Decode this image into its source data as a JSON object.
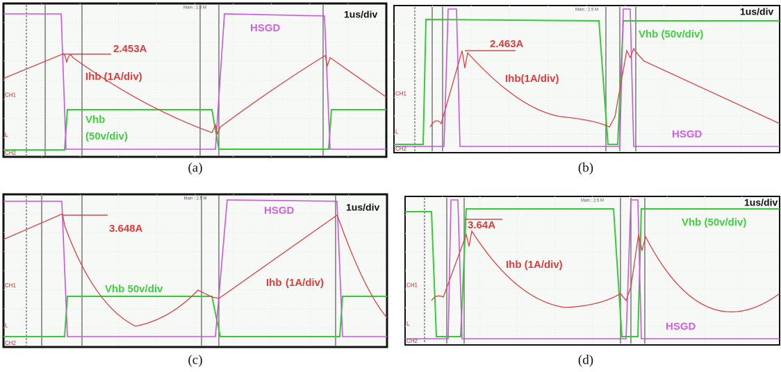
{
  "panels": [
    {
      "caption": "(a)",
      "header": "Main : 2.5 M",
      "timebase": "1us/div",
      "channel_markers": [
        "CH1",
        "L",
        "CH2"
      ],
      "annotations": [
        {
          "kind": "current",
          "text": "2.453A"
        },
        {
          "kind": "ihb",
          "text": "Ihb (1A/div)"
        },
        {
          "kind": "vhb",
          "text": "Vhb"
        },
        {
          "kind": "vhb",
          "text": "(50v/div)"
        },
        {
          "kind": "hsgd",
          "text": "HSGD"
        }
      ]
    },
    {
      "caption": "(b)",
      "header": "Main : 2.5 M",
      "timebase": "1us/div",
      "channel_markers": [
        "CH1",
        "L",
        "CH2"
      ],
      "annotations": [
        {
          "kind": "current",
          "text": "2.463A"
        },
        {
          "kind": "ihb",
          "text": "Ihb(1A/div)"
        },
        {
          "kind": "vhb",
          "text": "Vhb (50v/div)"
        },
        {
          "kind": "hsgd",
          "text": "HSGD"
        }
      ]
    },
    {
      "caption": "(c)",
      "header": "Main : 2.5 M",
      "timebase": "1us/div",
      "channel_markers": [
        "CH1",
        "L",
        "CH2"
      ],
      "annotations": [
        {
          "kind": "current",
          "text": "3.648A"
        },
        {
          "kind": "vhb",
          "text": "Vhb 50v/div"
        },
        {
          "kind": "ihb",
          "text": "Ihb"
        },
        {
          "kind": "ihb",
          "text": "(1A/div)"
        },
        {
          "kind": "hsgd",
          "text": "HSGD"
        }
      ]
    },
    {
      "caption": "(d)",
      "header": "Main : 2.5 M",
      "timebase": "1us/div",
      "channel_markers": [
        "CH1",
        "L",
        "CH2"
      ],
      "annotations": [
        {
          "kind": "current",
          "text": "3.64A"
        },
        {
          "kind": "ihb",
          "text": "Ihb (1A/div)"
        },
        {
          "kind": "vhb",
          "text": "Vhb (50v/div)"
        },
        {
          "kind": "hsgd",
          "text": "HSGD"
        }
      ]
    }
  ]
}
